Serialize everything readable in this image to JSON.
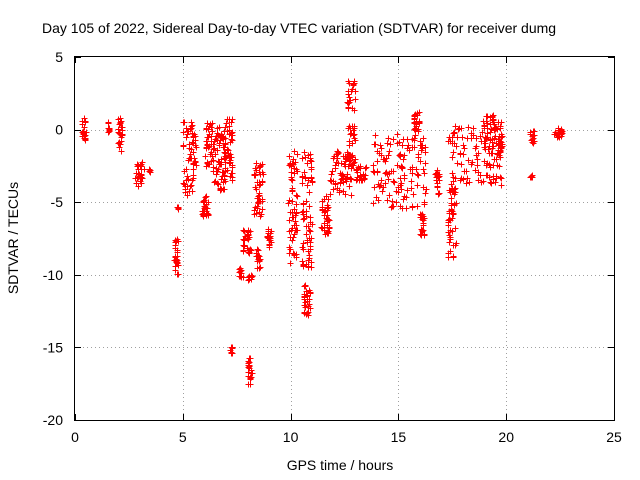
{
  "chart_data": {
    "type": "scatter",
    "title": "Day 105 of 2022, Sidereal Day-to-day VTEC variation (SDTVAR) for receiver dumg",
    "xlabel": "GPS time / hours",
    "ylabel": "SDTVAR / TECUs",
    "xlim": [
      0,
      25
    ],
    "ylim": [
      -20,
      5
    ],
    "x_ticks": [
      0,
      5,
      10,
      15,
      20,
      25
    ],
    "y_ticks": [
      5,
      0,
      -5,
      -10,
      -15,
      -20
    ],
    "x_tick_labels": [
      "0",
      "5",
      "10",
      "15",
      "20",
      "25"
    ],
    "y_tick_labels": [
      "5",
      "0",
      "-5",
      "-10",
      "-15",
      "-20"
    ],
    "grid": true,
    "marker": "+",
    "color": "#ff0000",
    "series": [
      {
        "name": "SDTVAR",
        "clusters": [
          {
            "x": [
              0.3,
              0.5
            ],
            "y": [
              -1.0,
              0.8
            ]
          },
          {
            "x": [
              1.5,
              1.6
            ],
            "y": [
              -0.2,
              0.6
            ]
          },
          {
            "x": [
              2.0,
              2.2
            ],
            "y": [
              -1.5,
              0.9
            ]
          },
          {
            "x": [
              2.8,
              3.2
            ],
            "y": [
              -3.9,
              -2.2
            ]
          },
          {
            "x": [
              3.4,
              3.5
            ],
            "y": [
              -3.0,
              -2.7
            ]
          },
          {
            "x": [
              4.6,
              4.8
            ],
            "y": [
              -10.0,
              -7.5
            ]
          },
          {
            "x": [
              4.7,
              4.8
            ],
            "y": [
              -5.5,
              -5.3
            ]
          },
          {
            "x": [
              5.0,
              5.6
            ],
            "y": [
              -4.5,
              0.6
            ]
          },
          {
            "x": [
              5.9,
              6.2
            ],
            "y": [
              -6.0,
              -4.5
            ]
          },
          {
            "x": [
              6.0,
              6.4
            ],
            "y": [
              -2.5,
              0.6
            ]
          },
          {
            "x": [
              6.4,
              7.0
            ],
            "y": [
              -4.2,
              0.2
            ]
          },
          {
            "x": [
              6.8,
              7.3
            ],
            "y": [
              -3.5,
              0.9
            ]
          },
          {
            "x": [
              7.2,
              7.3
            ],
            "y": [
              -15.4,
              -14.9
            ]
          },
          {
            "x": [
              7.6,
              7.8
            ],
            "y": [
              -10.3,
              -9.4
            ]
          },
          {
            "x": [
              7.8,
              8.2
            ],
            "y": [
              -8.5,
              -6.8
            ]
          },
          {
            "x": [
              8.0,
              8.2
            ],
            "y": [
              -17.6,
              -15.5
            ]
          },
          {
            "x": [
              8.0,
              8.2
            ],
            "y": [
              -10.4,
              -10.0
            ]
          },
          {
            "x": [
              8.3,
              8.7
            ],
            "y": [
              -6.0,
              -2.2
            ]
          },
          {
            "x": [
              8.4,
              8.6
            ],
            "y": [
              -9.6,
              -8.2
            ]
          },
          {
            "x": [
              8.9,
              9.1
            ],
            "y": [
              -8.2,
              -6.8
            ]
          },
          {
            "x": [
              9.9,
              10.3
            ],
            "y": [
              -9.2,
              -1.2
            ]
          },
          {
            "x": [
              10.6,
              10.9
            ],
            "y": [
              -12.8,
              -10.6
            ]
          },
          {
            "x": [
              10.5,
              11.0
            ],
            "y": [
              -9.5,
              -1.5
            ]
          },
          {
            "x": [
              11.4,
              11.8
            ],
            "y": [
              -7.2,
              -4.5
            ]
          },
          {
            "x": [
              11.8,
              12.8
            ],
            "y": [
              -4.5,
              -1.2
            ]
          },
          {
            "x": [
              12.6,
              13.0
            ],
            "y": [
              -2.5,
              3.4
            ]
          },
          {
            "x": [
              13.0,
              13.5
            ],
            "y": [
              -3.5,
              -2.5
            ]
          },
          {
            "x": [
              13.8,
              16.3
            ],
            "y": [
              -5.5,
              -0.3
            ]
          },
          {
            "x": [
              15.7,
              16.0
            ],
            "y": [
              -1.0,
              1.3
            ]
          },
          {
            "x": [
              16.0,
              16.2
            ],
            "y": [
              -7.5,
              -4.8
            ]
          },
          {
            "x": [
              16.7,
              16.9
            ],
            "y": [
              -4.5,
              -2.8
            ]
          },
          {
            "x": [
              17.3,
              17.7
            ],
            "y": [
              -8.8,
              -4.0
            ]
          },
          {
            "x": [
              17.3,
              19.8
            ],
            "y": [
              -3.8,
              0.3
            ]
          },
          {
            "x": [
              18.9,
              19.8
            ],
            "y": [
              -2.0,
              1.0
            ]
          },
          {
            "x": [
              21.1,
              21.2
            ],
            "y": [
              -3.3,
              -3.0
            ]
          },
          {
            "x": [
              21.1,
              21.3
            ],
            "y": [
              -1.0,
              0.0
            ]
          },
          {
            "x": [
              22.2,
              22.6
            ],
            "y": [
              -0.6,
              0.1
            ]
          }
        ]
      }
    ]
  }
}
